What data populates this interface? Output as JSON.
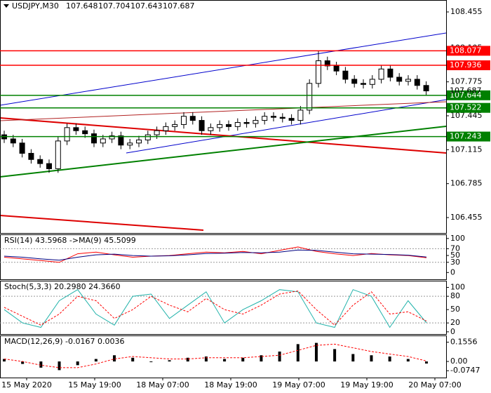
{
  "chart_data": [
    {
      "type": "candlestick",
      "title": "USDJPY,M30",
      "ohlc_header": [
        107.648,
        107.704,
        107.643,
        107.687
      ],
      "ylim": [
        106.305,
        108.571
      ],
      "yticks": [
        108.455,
        108.105,
        107.775,
        107.445,
        107.115,
        106.785,
        106.455
      ],
      "open": [
        107.26,
        107.22,
        107.18,
        107.08,
        107.02,
        106.98,
        106.93,
        107.2,
        107.33,
        107.3,
        107.27,
        107.18,
        107.22,
        107.25,
        107.16,
        107.18,
        107.21,
        107.26,
        107.3,
        107.34,
        107.36,
        107.44,
        107.4,
        107.3,
        107.33,
        107.36,
        107.34,
        107.38,
        107.37,
        107.4,
        107.44,
        107.43,
        107.42,
        107.4,
        107.5,
        107.76,
        107.98,
        107.93,
        107.88,
        107.8,
        107.76,
        107.75,
        107.8,
        107.9,
        107.82,
        107.78,
        107.8,
        107.74
      ],
      "high": [
        107.3,
        107.26,
        107.22,
        107.12,
        107.06,
        107.02,
        107.24,
        107.37,
        107.37,
        107.34,
        107.31,
        107.26,
        107.29,
        107.29,
        107.22,
        107.25,
        107.3,
        107.34,
        107.38,
        107.4,
        107.48,
        107.48,
        107.44,
        107.37,
        107.4,
        107.4,
        107.42,
        107.42,
        107.44,
        107.48,
        107.48,
        107.47,
        107.46,
        107.54,
        107.8,
        108.08,
        108.02,
        107.97,
        107.92,
        107.84,
        107.8,
        107.84,
        107.94,
        107.94,
        107.86,
        107.84,
        107.84,
        107.78
      ],
      "low": [
        107.18,
        107.14,
        107.04,
        106.98,
        106.94,
        106.89,
        106.89,
        107.16,
        107.26,
        107.23,
        107.14,
        107.14,
        107.18,
        107.12,
        107.12,
        107.14,
        107.17,
        107.22,
        107.26,
        107.3,
        107.32,
        107.36,
        107.26,
        107.26,
        107.29,
        107.3,
        107.3,
        107.33,
        107.33,
        107.36,
        107.39,
        107.38,
        107.36,
        107.36,
        107.46,
        107.72,
        107.89,
        107.84,
        107.76,
        107.72,
        107.71,
        107.71,
        107.76,
        107.78,
        107.74,
        107.74,
        107.7,
        107.643
      ],
      "close": [
        107.22,
        107.18,
        107.08,
        107.02,
        106.98,
        106.93,
        107.2,
        107.33,
        107.3,
        107.27,
        107.18,
        107.22,
        107.25,
        107.16,
        107.18,
        107.21,
        107.26,
        107.3,
        107.34,
        107.36,
        107.44,
        107.4,
        107.3,
        107.33,
        107.36,
        107.34,
        107.38,
        107.37,
        107.4,
        107.44,
        107.43,
        107.42,
        107.4,
        107.5,
        107.76,
        107.98,
        107.93,
        107.88,
        107.8,
        107.76,
        107.75,
        107.8,
        107.9,
        107.82,
        107.78,
        107.8,
        107.74,
        107.687
      ],
      "levels": [
        {
          "value": 108.077,
          "color": "#ff0000"
        },
        {
          "value": 107.936,
          "color": "#ff0000"
        },
        {
          "value": 107.644,
          "color": "#008000"
        },
        {
          "value": 107.522,
          "color": "#008000"
        },
        {
          "value": 107.243,
          "color": "#008000"
        }
      ],
      "last_price": 107.687,
      "xtick_labels": [
        "15 May 2020",
        "15 May 19:00",
        "18 May 07:00",
        "18 May 19:00",
        "19 May 07:00",
        "19 May 19:00",
        "20 May 07:00"
      ]
    },
    {
      "type": "line",
      "title": "RSI(14) 43.5968 ->MA(9) 45.5099",
      "ylim": [
        -20,
        112
      ],
      "yticks": [
        100,
        70,
        50,
        30,
        0
      ],
      "levels": [
        70,
        30
      ],
      "series": [
        {
          "color": "#ff0000",
          "values": [
            45,
            40,
            35,
            30,
            55,
            60,
            52,
            45,
            48,
            50,
            55,
            60,
            58,
            62,
            55,
            65,
            75,
            62,
            55,
            50,
            56,
            52,
            50,
            43.5968
          ]
        },
        {
          "color": "#000080",
          "values": [
            48,
            45,
            40,
            36,
            45,
            52,
            54,
            50,
            48,
            49,
            52,
            56,
            57,
            59,
            58,
            60,
            66,
            65,
            60,
            55,
            54,
            53,
            51,
            45.5099
          ]
        }
      ]
    },
    {
      "type": "line",
      "title": "Stoch(5,3,3) 20.2980 24.3660",
      "ylim": [
        -5,
        115
      ],
      "yticks": [
        100,
        80,
        50,
        20,
        0
      ],
      "levels": [
        80,
        20
      ],
      "series": [
        {
          "color": "#20b2aa",
          "values": [
            50,
            20,
            10,
            70,
            95,
            40,
            15,
            80,
            85,
            30,
            60,
            90,
            20,
            50,
            70,
            95,
            90,
            20,
            10,
            95,
            80,
            10,
            70,
            20.298
          ]
        },
        {
          "color": "#ff0000",
          "dash": true,
          "values": [
            55,
            35,
            15,
            40,
            80,
            70,
            30,
            50,
            80,
            60,
            45,
            75,
            50,
            40,
            60,
            85,
            92,
            50,
            15,
            60,
            90,
            40,
            45,
            24.366
          ]
        }
      ]
    },
    {
      "type": "macd",
      "title": "MACD(12,26,9) -0.0167 0.0036",
      "ylim": [
        -0.13,
        0.21
      ],
      "yticks": [
        0.1556,
        {
          "value": 0,
          "label": "0.00"
        },
        -0.0747
      ],
      "series": [
        {
          "color": "#000000",
          "values": [
            0.02,
            -0.02,
            -0.05,
            -0.07,
            -0.03,
            0.02,
            0.05,
            0.03,
            0.0,
            0.01,
            0.03,
            0.04,
            0.02,
            0.03,
            0.05,
            0.08,
            0.14,
            0.15,
            0.1,
            0.06,
            0.05,
            0.04,
            0.02,
            -0.0167
          ]
        },
        {
          "color": "#ff0000",
          "dash": true,
          "values": [
            0.02,
            0.0,
            -0.03,
            -0.05,
            -0.05,
            -0.02,
            0.02,
            0.04,
            0.03,
            0.02,
            0.02,
            0.03,
            0.03,
            0.03,
            0.04,
            0.05,
            0.09,
            0.13,
            0.14,
            0.11,
            0.08,
            0.06,
            0.04,
            0.0036
          ]
        }
      ]
    }
  ]
}
